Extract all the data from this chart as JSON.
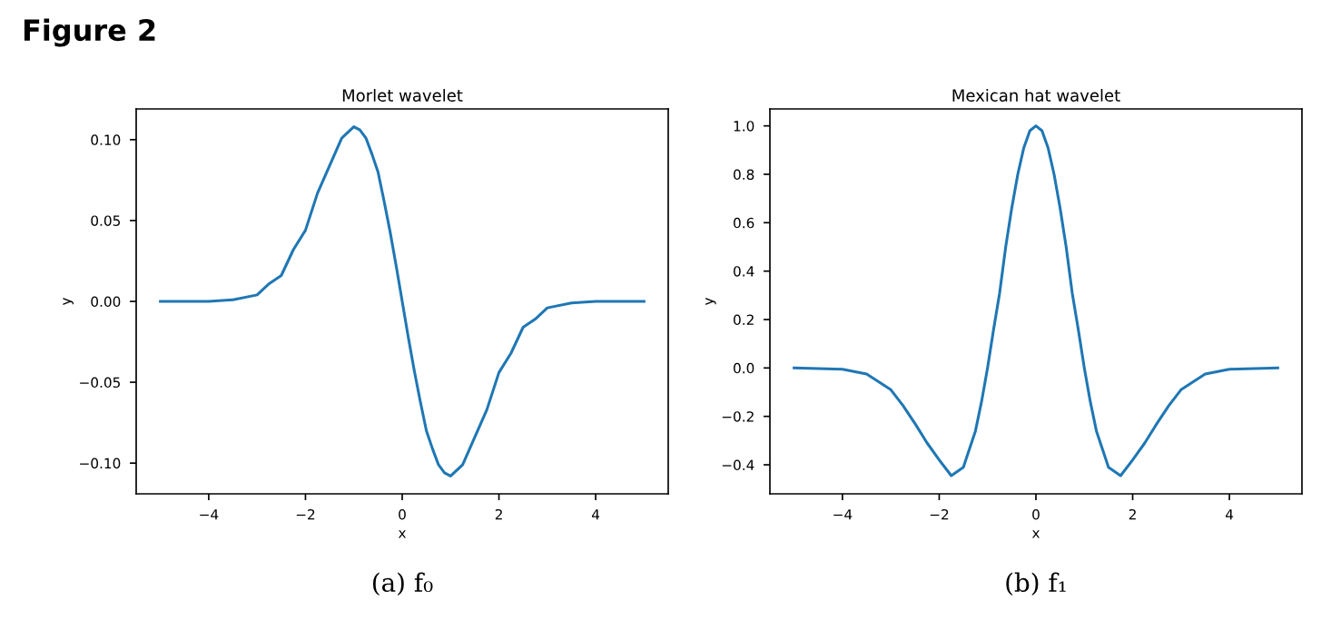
{
  "chart_data": [
    {
      "type": "line",
      "title": "Morlet wavelet",
      "xlabel": "x",
      "ylabel": "y",
      "annotations": [
        "Figure 2",
        "(a) f₀"
      ],
      "series": [
        {
          "color": "#1f77b4",
          "x": [
            -5,
            -4,
            -3.5,
            -3,
            -2.75,
            -2.5,
            -2.25,
            -2,
            -1.75,
            -1.5,
            -1.25,
            -1,
            -0.875,
            -0.75,
            -0.625,
            -0.5,
            -0.375,
            -0.25,
            -0.125,
            0,
            0.125,
            0.25,
            0.375,
            0.5,
            0.625,
            0.75,
            0.875,
            1,
            1.25,
            1.5,
            1.75,
            2,
            2.25,
            2.5,
            2.75,
            3,
            3.5,
            4,
            5
          ],
          "values": [
            0,
            0,
            0.001,
            0.004,
            0.011,
            0.016,
            0.032,
            0.044,
            0.067,
            0.084,
            0.101,
            0.108,
            0.106,
            0.101,
            0.091,
            0.08,
            0.062,
            0.043,
            0.022,
            0,
            -0.022,
            -0.043,
            -0.062,
            -0.08,
            -0.091,
            -0.101,
            -0.106,
            -0.108,
            -0.101,
            -0.084,
            -0.067,
            -0.044,
            -0.032,
            -0.016,
            -0.011,
            -0.004,
            -0.001,
            0,
            0
          ]
        }
      ],
      "xlim": [
        -5.5,
        5.5
      ],
      "xticks": [
        -4,
        -2,
        0,
        2,
        4
      ],
      "ylim": [
        -0.119,
        0.119
      ],
      "yticks": [
        {
          "value": -0.1,
          "label": "−0.10"
        },
        {
          "value": -0.05,
          "label": "−0.05"
        },
        {
          "value": 0,
          "label": "0.00"
        },
        {
          "value": 0.05,
          "label": "0.05"
        },
        {
          "value": 0.1,
          "label": "0.10"
        }
      ],
      "grid": false,
      "legend": false
    },
    {
      "type": "line",
      "title": "Mexican hat wavelet",
      "xlabel": "x",
      "ylabel": "y",
      "annotations": [
        "(b) f₁"
      ],
      "series": [
        {
          "color": "#1f77b4",
          "x": [
            -5,
            -4,
            -3.5,
            -3,
            -2.75,
            -2.5,
            -2.25,
            -2,
            -1.75,
            -1.5,
            -1.25,
            -1.125,
            -1,
            -0.875,
            -0.75,
            -0.625,
            -0.5,
            -0.375,
            -0.25,
            -0.125,
            0,
            0.125,
            0.25,
            0.375,
            0.5,
            0.625,
            0.75,
            0.875,
            1,
            1.125,
            1.25,
            1.5,
            1.75,
            2,
            2.25,
            2.5,
            2.75,
            3,
            3.5,
            4,
            5
          ],
          "values": [
            0,
            -0.005,
            -0.025,
            -0.09,
            -0.155,
            -0.23,
            -0.31,
            -0.38,
            -0.445,
            -0.41,
            -0.26,
            -0.14,
            0,
            0.16,
            0.31,
            0.5,
            0.66,
            0.8,
            0.91,
            0.98,
            1,
            0.98,
            0.91,
            0.8,
            0.66,
            0.5,
            0.31,
            0.16,
            0,
            -0.14,
            -0.26,
            -0.41,
            -0.445,
            -0.38,
            -0.31,
            -0.23,
            -0.155,
            -0.09,
            -0.025,
            -0.005,
            0
          ]
        }
      ],
      "xlim": [
        -5.5,
        5.5
      ],
      "xticks": [
        -4,
        -2,
        0,
        2,
        4
      ],
      "ylim": [
        -0.52,
        1.07
      ],
      "yticks": [
        {
          "value": -0.4,
          "label": "−0.4"
        },
        {
          "value": -0.2,
          "label": "−0.2"
        },
        {
          "value": 0,
          "label": "0.0"
        },
        {
          "value": 0.2,
          "label": "0.2"
        },
        {
          "value": 0.4,
          "label": "0.4"
        },
        {
          "value": 0.6,
          "label": "0.6"
        },
        {
          "value": 0.8,
          "label": "0.8"
        },
        {
          "value": 1,
          "label": "1.0"
        }
      ],
      "grid": false,
      "legend": false
    }
  ]
}
